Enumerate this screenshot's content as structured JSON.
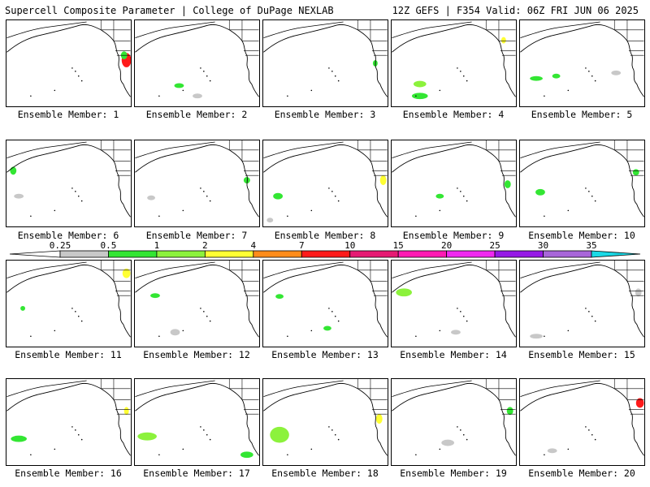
{
  "header": {
    "title": "Supercell Composite Parameter | College of DuPage NEXLAB",
    "run_info": "12Z GEFS | F354 Valid: 06Z FRI JUN 06 2025"
  },
  "members": [
    {
      "label": "Ensemble Member: 1"
    },
    {
      "label": "Ensemble Member: 2"
    },
    {
      "label": "Ensemble Member: 3"
    },
    {
      "label": "Ensemble Member: 4"
    },
    {
      "label": "Ensemble Member: 5"
    },
    {
      "label": "Ensemble Member: 6"
    },
    {
      "label": "Ensemble Member: 7"
    },
    {
      "label": "Ensemble Member: 8"
    },
    {
      "label": "Ensemble Member: 9"
    },
    {
      "label": "Ensemble Member: 10"
    },
    {
      "label": "Ensemble Member: 11"
    },
    {
      "label": "Ensemble Member: 12"
    },
    {
      "label": "Ensemble Member: 13"
    },
    {
      "label": "Ensemble Member: 14"
    },
    {
      "label": "Ensemble Member: 15"
    },
    {
      "label": "Ensemble Member: 16"
    },
    {
      "label": "Ensemble Member: 17"
    },
    {
      "label": "Ensemble Member: 18"
    },
    {
      "label": "Ensemble Member: 19"
    },
    {
      "label": "Ensemble Member: 20"
    }
  ],
  "colorbar": {
    "ticks": [
      "0.25",
      "0.5",
      "1",
      "2",
      "4",
      "7",
      "10",
      "15",
      "20",
      "25",
      "30",
      "35"
    ],
    "colors": [
      "#c8c8c8",
      "#33e633",
      "#8cf23c",
      "#ffff33",
      "#ff8c1a",
      "#ff1a1a",
      "#e61a73",
      "#ff1ab3",
      "#f028f0",
      "#9619e6",
      "#a866d9",
      "#1ad9e6"
    ]
  }
}
